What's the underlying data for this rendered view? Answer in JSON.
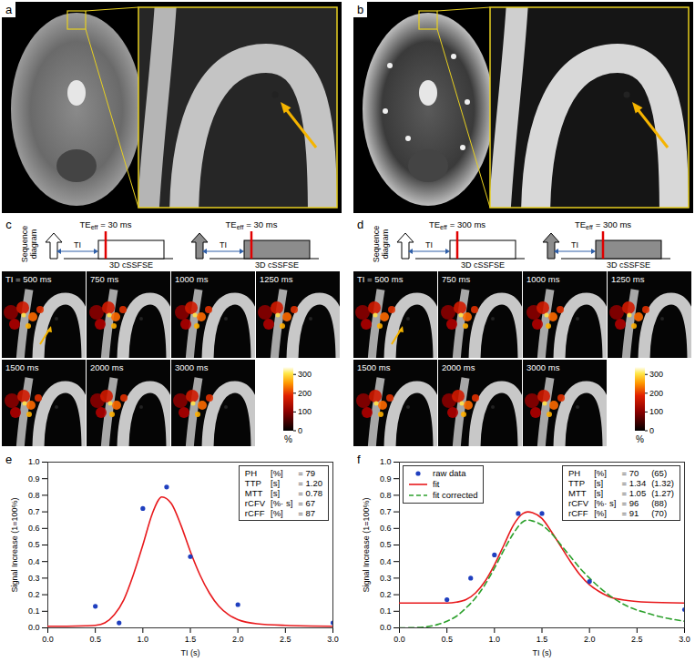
{
  "panels": {
    "a": {
      "label": "a"
    },
    "b": {
      "label": "b"
    },
    "c": {
      "label": "c",
      "sequence": {
        "lines": [
          "Sequence",
          "diagram"
        ],
        "ti": "TI",
        "te": "TE",
        "te_sub": "eff",
        "te_value": "= 30 ms",
        "block": "3D cSSFSE"
      },
      "tiles": [
        "TI = 500 ms",
        "750 ms",
        "1000 ms",
        "1250 ms",
        "1500 ms",
        "2000 ms",
        "3000 ms"
      ],
      "colorbar": {
        "range": [
          0,
          340
        ],
        "ticks": [
          0,
          100,
          200,
          300
        ],
        "label": "%"
      }
    },
    "d": {
      "label": "d",
      "sequence": {
        "lines": [
          "Sequence",
          "diagram"
        ],
        "ti": "TI",
        "te": "TE",
        "te_sub": "eff",
        "te_value": "= 300 ms",
        "block": "3D cSSFSE"
      },
      "tiles": [
        "TI = 500 ms",
        "750 ms",
        "1000 ms",
        "1250 ms",
        "1500 ms",
        "2000 ms",
        "3000 ms"
      ],
      "colorbar": {
        "range": [
          0,
          340
        ],
        "ticks": [
          0,
          100,
          200,
          300
        ],
        "label": "%"
      }
    }
  },
  "chart_data": [
    {
      "type": "line",
      "panel_label": "e",
      "xlabel": "TI (s)",
      "ylabel": "Signal Increase (1=100%)",
      "xlim": [
        0,
        3
      ],
      "xticks": [
        0,
        0.5,
        1,
        1.5,
        2,
        2.5,
        3
      ],
      "ylim": [
        0,
        1
      ],
      "yticks": [
        0,
        0.1,
        0.2,
        0.3,
        0.4,
        0.5,
        0.6,
        0.7,
        0.8,
        0.9,
        1
      ],
      "grid": false,
      "series": [
        {
          "type": "line",
          "color": "#e8191c",
          "line_style": "solid",
          "x": [
            0,
            0.2,
            0.4,
            0.5,
            0.6,
            0.7,
            0.8,
            0.9,
            1.0,
            1.1,
            1.2,
            1.3,
            1.4,
            1.5,
            1.6,
            1.7,
            1.8,
            1.9,
            2.0,
            2.2,
            2.5,
            3.0
          ],
          "values": [
            0.01,
            0.01,
            0.012,
            0.015,
            0.03,
            0.08,
            0.17,
            0.32,
            0.5,
            0.69,
            0.79,
            0.75,
            0.62,
            0.46,
            0.32,
            0.21,
            0.13,
            0.08,
            0.05,
            0.025,
            0.015,
            0.01
          ]
        },
        {
          "type": "scatter",
          "color": "#1f3fbf",
          "marker": "circle",
          "x": [
            0.5,
            0.75,
            1.0,
            1.25,
            1.5,
            2.0,
            3.0
          ],
          "values": [
            0.13,
            0.03,
            0.72,
            0.85,
            0.43,
            0.14,
            0.03
          ]
        }
      ],
      "parameters": {
        "names": [
          "PH",
          "TTP",
          "MTT",
          "rCFV",
          "rCFF"
        ],
        "units": [
          "[%]",
          "[s]",
          "[s]",
          "[%· s]",
          "[%]"
        ],
        "values": [
          79,
          1.2,
          0.78,
          67,
          87
        ],
        "value_labels": [
          "= 79",
          "= 1.20",
          "= 0.78",
          "= 67",
          "= 87"
        ]
      }
    },
    {
      "type": "line",
      "panel_label": "f",
      "xlabel": "TI (s)",
      "ylabel": "Signal Increase (1=100%)",
      "xlim": [
        0,
        3
      ],
      "xticks": [
        0,
        0.5,
        1,
        1.5,
        2,
        2.5,
        3
      ],
      "ylim": [
        0,
        1
      ],
      "yticks": [
        0,
        0.1,
        0.2,
        0.3,
        0.4,
        0.5,
        0.6,
        0.7,
        0.8,
        0.9,
        1
      ],
      "grid": false,
      "legend": "top-left",
      "series": [
        {
          "name": "raw data",
          "type": "scatter",
          "color": "#1f3fbf",
          "marker": "circle",
          "x": [
            0.5,
            0.75,
            1.0,
            1.25,
            1.5,
            2.0,
            3.0
          ],
          "values": [
            0.17,
            0.3,
            0.44,
            0.69,
            0.69,
            0.28,
            0.11
          ]
        },
        {
          "name": "fit",
          "type": "line",
          "color": "#e8191c",
          "line_style": "solid",
          "x": [
            0,
            0.5,
            0.6,
            0.7,
            0.8,
            0.9,
            1.0,
            1.1,
            1.2,
            1.3,
            1.35,
            1.4,
            1.5,
            1.6,
            1.7,
            1.8,
            1.9,
            2.0,
            2.1,
            2.2,
            2.4,
            2.6,
            3.0
          ],
          "values": [
            0.15,
            0.15,
            0.155,
            0.17,
            0.21,
            0.28,
            0.38,
            0.5,
            0.62,
            0.69,
            0.7,
            0.695,
            0.66,
            0.58,
            0.49,
            0.4,
            0.32,
            0.26,
            0.22,
            0.19,
            0.165,
            0.155,
            0.15
          ]
        },
        {
          "name": "fit corrected",
          "type": "line",
          "color": "#2ca02c",
          "line_style": "dashed",
          "x": [
            0,
            0.2,
            0.4,
            0.5,
            0.6,
            0.7,
            0.8,
            0.9,
            1.0,
            1.1,
            1.2,
            1.3,
            1.35,
            1.4,
            1.5,
            1.6,
            1.7,
            1.8,
            1.9,
            2.0,
            2.2,
            2.4,
            2.6,
            2.8,
            3.0
          ],
          "values": [
            0,
            0.002,
            0.02,
            0.04,
            0.07,
            0.12,
            0.18,
            0.26,
            0.36,
            0.47,
            0.57,
            0.64,
            0.65,
            0.645,
            0.62,
            0.57,
            0.5,
            0.43,
            0.36,
            0.3,
            0.2,
            0.13,
            0.09,
            0.06,
            0.04
          ]
        }
      ],
      "parameters": {
        "names": [
          "PH",
          "TTP",
          "MTT",
          "rCFV",
          "rCFF"
        ],
        "units": [
          "[%]",
          "[s]",
          "[s]",
          "[%· s]",
          "[%]"
        ],
        "values": [
          70,
          1.34,
          1.05,
          96,
          91
        ],
        "value_labels": [
          "= 70",
          "= 1.34",
          "= 1.05",
          "= 96",
          "= 91"
        ],
        "corrected_values": [
          65,
          1.32,
          1.27,
          88,
          70
        ],
        "corrected_labels": [
          "(65)",
          "(1.32)",
          "(1.27)",
          "(88)",
          "(70)"
        ]
      }
    }
  ]
}
